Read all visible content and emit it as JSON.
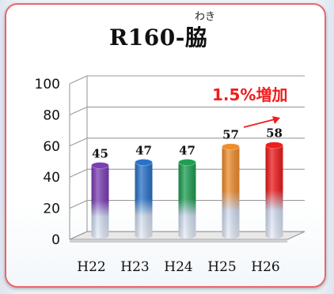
{
  "chart_data": {
    "type": "bar",
    "title": "R160-脇",
    "title_ruby": "わき",
    "categories": [
      "H22",
      "H23",
      "H24",
      "H25",
      "H26"
    ],
    "values": [
      45,
      47,
      47,
      57,
      58
    ],
    "ylim": [
      0,
      100
    ],
    "yticks": [
      0,
      20,
      40,
      60,
      80,
      100
    ],
    "grid": true,
    "three_d": true,
    "annotation": "1.5%増加",
    "annotation_color": "#f01d1d",
    "bar_colors": [
      "#7b3fb5",
      "#2a72c8",
      "#1f9e52",
      "#ef8d2d",
      "#ee1c1c"
    ]
  }
}
